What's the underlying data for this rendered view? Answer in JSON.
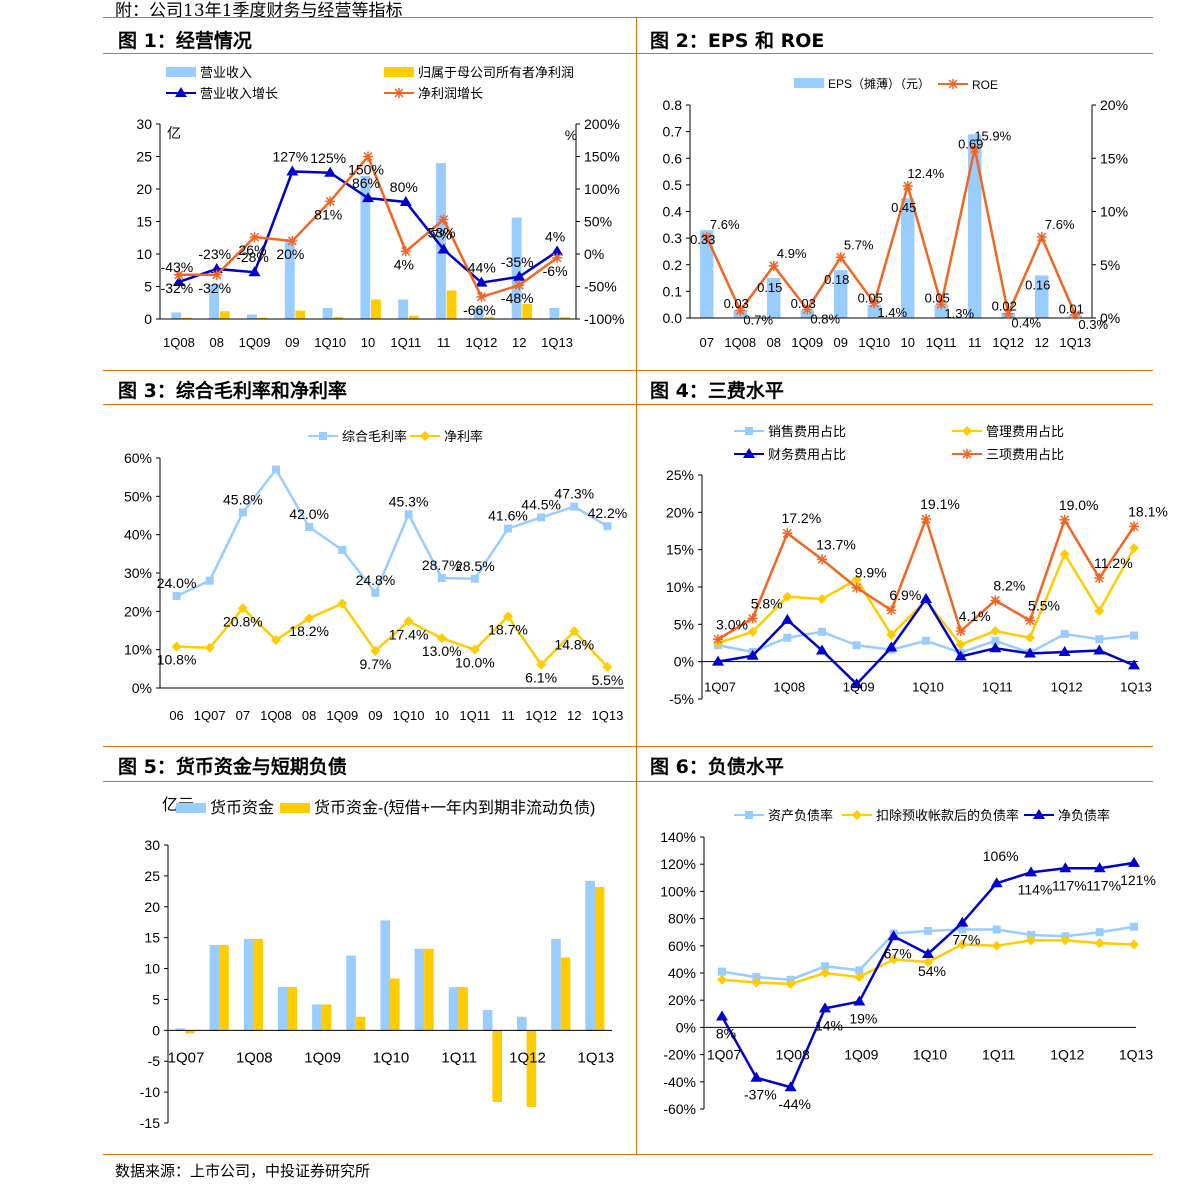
{
  "header": "附：公司13年1季度财务与经营等指标",
  "source": "数据来源：上市公司，中投证券研究所",
  "colors": {
    "orange": "#E36C0A",
    "lightblue": "#99CCFF",
    "yellow": "#FFCC00",
    "blue": "#0000CC",
    "orangeline": "#F26522",
    "gold": "#FFCC00"
  },
  "chart_data": [
    {
      "id": "fig1",
      "title": "图 1：经营情况",
      "type": "bar",
      "unit_left": "亿",
      "unit_right": "%",
      "categories": [
        "1Q08",
        "08",
        "1Q09",
        "09",
        "1Q10",
        "10",
        "1Q11",
        "11",
        "1Q12",
        "12",
        "1Q13"
      ],
      "ylim_left": [
        0,
        30
      ],
      "yticks_left": [
        "0",
        "5",
        "10",
        "15",
        "20",
        "25",
        "30"
      ],
      "ylim_right": [
        -100,
        200
      ],
      "yticks_right": [
        "-100%",
        "-50%",
        "0%",
        "50%",
        "100%",
        "150%",
        "200%"
      ],
      "series": [
        {
          "name": "营业收入",
          "kind": "bar",
          "axis": "left",
          "color": "#99CCFF",
          "values": [
            1.0,
            5.3,
            0.7,
            12.0,
            1.7,
            22.0,
            3.0,
            24.0,
            1.8,
            15.6,
            1.7
          ]
        },
        {
          "name": "归属于母公司所有者净利润",
          "kind": "bar",
          "axis": "left",
          "color": "#FFCC00",
          "values": [
            0.2,
            1.2,
            0.2,
            1.3,
            0.3,
            3.0,
            0.5,
            4.4,
            0.3,
            2.3,
            0.3
          ]
        },
        {
          "name": "营业收入增长",
          "kind": "line",
          "axis": "right",
          "color": "#0000CC",
          "marker": "triangle",
          "values": [
            -43,
            -23,
            -28,
            127,
            125,
            86,
            80,
            7,
            -44,
            -35,
            4
          ]
        },
        {
          "name": "净利润增长",
          "kind": "line",
          "axis": "right",
          "color": "#F26522",
          "marker": "star",
          "values": [
            -32,
            -32,
            26,
            20,
            81,
            150,
            4,
            53,
            -66,
            -48,
            -6
          ]
        }
      ],
      "labels": [
        {
          "cat": 0,
          "v": -43,
          "text": "-43%"
        },
        {
          "cat": 1,
          "v": -23,
          "text": "-23%"
        },
        {
          "cat": 2,
          "v": -28,
          "text": "-28%"
        },
        {
          "cat": 3,
          "v": 127,
          "text": "127%"
        },
        {
          "cat": 4,
          "v": 125,
          "text": "125%"
        },
        {
          "cat": 5,
          "v": 86,
          "text": "86%"
        },
        {
          "cat": 6,
          "v": 80,
          "text": "80%"
        },
        {
          "cat": 7,
          "v": 7,
          "text": "7%"
        },
        {
          "cat": 8,
          "v": -44,
          "text": "-44%"
        },
        {
          "cat": 9,
          "v": -35,
          "text": "-35%"
        },
        {
          "cat": 10,
          "v": 4,
          "text": "4%"
        },
        {
          "cat": 0,
          "v": -32,
          "text": "-32%"
        },
        {
          "cat": 1,
          "v": -32,
          "text": "-32%"
        },
        {
          "cat": 2,
          "v": 26,
          "text": "26%"
        },
        {
          "cat": 3,
          "v": 20,
          "text": "20%"
        },
        {
          "cat": 4,
          "v": 81,
          "text": "81%"
        },
        {
          "cat": 5,
          "v": 150,
          "text": "150%"
        },
        {
          "cat": 6,
          "v": 4,
          "text": "4%"
        },
        {
          "cat": 7,
          "v": 53,
          "text": "53%"
        },
        {
          "cat": 8,
          "v": -66,
          "text": "-66%"
        },
        {
          "cat": 9,
          "v": -48,
          "text": "-48%"
        },
        {
          "cat": 10,
          "v": -6,
          "text": "-6%"
        }
      ]
    },
    {
      "id": "fig2",
      "title": "图 2：EPS 和 ROE",
      "type": "bar",
      "categories": [
        "07",
        "1Q08",
        "08",
        "1Q09",
        "09",
        "1Q10",
        "10",
        "1Q11",
        "11",
        "1Q12",
        "12",
        "1Q13"
      ],
      "ylim_left": [
        0,
        0.8
      ],
      "yticks_left": [
        "0.0",
        "0.1",
        "0.2",
        "0.3",
        "0.4",
        "0.5",
        "0.6",
        "0.7",
        "0.8"
      ],
      "ylim_right": [
        0,
        20
      ],
      "yticks_right": [
        "0%",
        "5%",
        "10%",
        "15%",
        "20%"
      ],
      "series": [
        {
          "name": "EPS（摊薄）（元）",
          "kind": "bar",
          "axis": "left",
          "color": "#99CCFF",
          "values": [
            0.33,
            0.03,
            0.15,
            0.03,
            0.18,
            0.05,
            0.45,
            0.05,
            0.69,
            0.02,
            0.16,
            0.01
          ]
        },
        {
          "name": "ROE",
          "kind": "line",
          "axis": "right",
          "color": "#F26522",
          "marker": "star",
          "values": [
            7.6,
            0.7,
            4.9,
            0.8,
            5.7,
            1.4,
            12.4,
            1.3,
            15.9,
            0.4,
            7.6,
            0.3
          ]
        }
      ],
      "labels": [
        {
          "cat": 0,
          "text": "0.33"
        },
        {
          "cat": 1,
          "text": "0.03"
        },
        {
          "cat": 2,
          "text": "0.15"
        },
        {
          "cat": 3,
          "text": "0.03"
        },
        {
          "cat": 4,
          "text": "0.18"
        },
        {
          "cat": 5,
          "text": "0.05"
        },
        {
          "cat": 6,
          "text": "0.45"
        },
        {
          "cat": 7,
          "text": "0.05"
        },
        {
          "cat": 8,
          "text": "0.69"
        },
        {
          "cat": 9,
          "text": "0.02"
        },
        {
          "cat": 10,
          "text": "0.16"
        },
        {
          "cat": 11,
          "text": "0.01"
        },
        {
          "cat": 0,
          "text": "7.6%"
        },
        {
          "cat": 1,
          "text": "0.7%"
        },
        {
          "cat": 2,
          "text": "4.9%"
        },
        {
          "cat": 3,
          "text": "0.8%"
        },
        {
          "cat": 4,
          "text": "5.7%"
        },
        {
          "cat": 5,
          "text": "1.4%"
        },
        {
          "cat": 6,
          "text": "12.4%"
        },
        {
          "cat": 7,
          "text": "1.3%"
        },
        {
          "cat": 8,
          "text": "15.9%"
        },
        {
          "cat": 9,
          "text": "0.4%"
        },
        {
          "cat": 10,
          "text": "7.6%"
        },
        {
          "cat": 11,
          "text": "0.3%"
        }
      ]
    },
    {
      "id": "fig3",
      "title": "图 3：综合毛利率和净利率",
      "type": "line",
      "categories": [
        "06",
        "1Q07",
        "07",
        "1Q08",
        "08",
        "1Q09",
        "09",
        "1Q10",
        "10",
        "1Q11",
        "11",
        "1Q12",
        "12",
        "1Q13"
      ],
      "ylim": [
        0,
        60
      ],
      "yticks": [
        "0%",
        "10%",
        "20%",
        "30%",
        "40%",
        "50%",
        "60%"
      ],
      "series": [
        {
          "name": "综合毛利率",
          "color": "#99CCFF",
          "marker": "square",
          "values": [
            24.0,
            28.0,
            45.8,
            57.0,
            42.0,
            36.0,
            24.8,
            45.3,
            28.7,
            28.5,
            41.6,
            44.5,
            47.3,
            42.2
          ]
        },
        {
          "name": "净利率",
          "color": "#FFCC00",
          "marker": "diamond",
          "values": [
            10.8,
            10.5,
            20.8,
            12.5,
            18.2,
            22.0,
            9.7,
            17.4,
            13.0,
            10.0,
            18.7,
            6.1,
            14.8,
            5.5
          ]
        }
      ],
      "labels": [
        {
          "s": 0,
          "cat": 0,
          "text": "24.0%"
        },
        {
          "s": 0,
          "cat": 2,
          "text": "45.8%"
        },
        {
          "s": 0,
          "cat": 4,
          "text": "42.0%"
        },
        {
          "s": 0,
          "cat": 6,
          "text": "24.8%"
        },
        {
          "s": 0,
          "cat": 7,
          "text": "45.3%"
        },
        {
          "s": 0,
          "cat": 8,
          "text": "28.7%"
        },
        {
          "s": 0,
          "cat": 9,
          "text": "28.5%"
        },
        {
          "s": 0,
          "cat": 10,
          "text": "41.6%"
        },
        {
          "s": 0,
          "cat": 11,
          "text": "44.5%"
        },
        {
          "s": 0,
          "cat": 12,
          "text": "47.3%"
        },
        {
          "s": 0,
          "cat": 13,
          "text": "42.2%"
        },
        {
          "s": 1,
          "cat": 0,
          "text": "10.8%"
        },
        {
          "s": 1,
          "cat": 2,
          "text": "20.8%"
        },
        {
          "s": 1,
          "cat": 4,
          "text": "18.2%"
        },
        {
          "s": 1,
          "cat": 6,
          "text": "9.7%"
        },
        {
          "s": 1,
          "cat": 7,
          "text": "17.4%"
        },
        {
          "s": 1,
          "cat": 8,
          "text": "13.0%"
        },
        {
          "s": 1,
          "cat": 9,
          "text": "10.0%"
        },
        {
          "s": 1,
          "cat": 10,
          "text": "18.7%"
        },
        {
          "s": 1,
          "cat": 11,
          "text": "6.1%"
        },
        {
          "s": 1,
          "cat": 12,
          "text": "14.8%"
        },
        {
          "s": 1,
          "cat": 13,
          "text": "5.5%"
        }
      ]
    },
    {
      "id": "fig4",
      "title": "图 4：三费水平",
      "type": "line",
      "tick_labels": [
        "1Q07",
        "1Q08",
        "1Q09",
        "1Q10",
        "1Q11",
        "1Q12",
        "1Q13"
      ],
      "ylim": [
        -5,
        25
      ],
      "yticks": [
        "-5%",
        "0%",
        "5%",
        "10%",
        "15%",
        "20%",
        "25%"
      ],
      "series": [
        {
          "name": "销售费用占比",
          "color": "#99CCFF",
          "marker": "square",
          "values": [
            2.2,
            1.3,
            3.2,
            4.0,
            2.2,
            1.6,
            2.8,
            1.2,
            2.8,
            1.2,
            3.7,
            3.0,
            3.5
          ]
        },
        {
          "name": "管理费用占比",
          "color": "#FFCC00",
          "marker": "diamond",
          "values": [
            2.5,
            4.0,
            8.7,
            8.4,
            11.0,
            3.6,
            8.2,
            2.3,
            4.1,
            3.2,
            14.4,
            6.8,
            15.2
          ]
        },
        {
          "name": "财务费用占比",
          "color": "#0000CC",
          "marker": "triangle",
          "values": [
            0.0,
            0.8,
            5.6,
            1.5,
            -3.0,
            1.9,
            8.4,
            0.7,
            1.8,
            1.1,
            1.3,
            1.5,
            -0.5
          ]
        },
        {
          "name": "三项费用占比",
          "color": "#F26522",
          "marker": "star",
          "values": [
            3.0,
            5.8,
            17.2,
            13.7,
            9.9,
            6.9,
            19.1,
            4.1,
            8.2,
            5.5,
            19.0,
            11.2,
            18.1
          ]
        }
      ],
      "labels": [
        {
          "cat": 0,
          "v": 3.0,
          "text": "3.0%"
        },
        {
          "cat": 1,
          "v": 5.8,
          "text": "5.8%"
        },
        {
          "cat": 2,
          "v": 17.2,
          "text": "17.2%"
        },
        {
          "cat": 3,
          "v": 13.7,
          "text": "13.7%"
        },
        {
          "cat": 4,
          "v": 9.9,
          "text": "9.9%"
        },
        {
          "cat": 5,
          "v": 6.9,
          "text": "6.9%"
        },
        {
          "cat": 6,
          "v": 19.1,
          "text": "19.1%"
        },
        {
          "cat": 7,
          "v": 4.1,
          "text": "4.1%"
        },
        {
          "cat": 8,
          "v": 8.2,
          "text": "8.2%"
        },
        {
          "cat": 9,
          "v": 5.5,
          "text": "5.5%"
        },
        {
          "cat": 10,
          "v": 19.0,
          "text": "19.0%"
        },
        {
          "cat": 11,
          "v": 11.2,
          "text": "11.2%"
        },
        {
          "cat": 12,
          "v": 18.1,
          "text": "18.1%"
        }
      ]
    },
    {
      "id": "fig5",
      "title": "图 5：货币资金与短期负债",
      "type": "bar",
      "unit": "亿元",
      "tick_labels": [
        "1Q07",
        "1Q08",
        "1Q09",
        "1Q10",
        "1Q11",
        "1Q12",
        "1Q13"
      ],
      "ylim": [
        -15,
        30
      ],
      "yticks": [
        "-15",
        "-10",
        "-5",
        "0",
        "5",
        "10",
        "15",
        "20",
        "25",
        "30"
      ],
      "series": [
        {
          "name": "货币资金",
          "color": "#99CCFF",
          "values": [
            0.3,
            13.8,
            14.8,
            7.0,
            4.2,
            12.1,
            17.8,
            13.2,
            7.0,
            3.3,
            2.2,
            14.8,
            24.2
          ]
        },
        {
          "name": "货币资金-(短借+一年内到期非流动负债)",
          "color": "#FFCC00",
          "values": [
            -0.5,
            13.8,
            14.8,
            7.0,
            4.2,
            2.2,
            8.4,
            13.2,
            7.0,
            -11.6,
            -12.4,
            11.8,
            23.2
          ]
        }
      ]
    },
    {
      "id": "fig6",
      "title": "图 6：负债水平",
      "type": "line",
      "tick_labels": [
        "1Q07",
        "1Q08",
        "1Q09",
        "1Q10",
        "1Q11",
        "1Q12",
        "1Q13"
      ],
      "ylim": [
        -60,
        140
      ],
      "yticks": [
        "-60%",
        "-40%",
        "-20%",
        "0%",
        "20%",
        "40%",
        "60%",
        "80%",
        "100%",
        "120%",
        "140%"
      ],
      "series": [
        {
          "name": "资产负债率",
          "color": "#99CCFF",
          "marker": "square",
          "values": [
            41,
            37,
            35,
            45,
            42,
            69,
            71,
            72,
            72,
            68,
            67,
            70,
            74
          ]
        },
        {
          "name": "扣除预收帐款后的负债率",
          "color": "#FFCC00",
          "marker": "diamond",
          "values": [
            35,
            33,
            32,
            40,
            37,
            50,
            48,
            61,
            60,
            64,
            64,
            62,
            61
          ]
        },
        {
          "name": "净负债率",
          "color": "#0000CC",
          "marker": "triangle",
          "values": [
            8,
            -37,
            -44,
            14,
            19,
            67,
            54,
            77,
            106,
            114,
            117,
            117,
            121
          ]
        }
      ],
      "labels": [
        {
          "cat": 0,
          "v": 8,
          "text": "8%"
        },
        {
          "cat": 1,
          "v": -37,
          "text": "-37%"
        },
        {
          "cat": 2,
          "v": -44,
          "text": "-44%"
        },
        {
          "cat": 3,
          "v": 14,
          "text": "14%"
        },
        {
          "cat": 4,
          "v": 19,
          "text": "19%"
        },
        {
          "cat": 5,
          "v": 67,
          "text": "67%"
        },
        {
          "cat": 6,
          "v": 54,
          "text": "54%"
        },
        {
          "cat": 7,
          "v": 77,
          "text": "77%"
        },
        {
          "cat": 8,
          "v": 106,
          "text": "106%"
        },
        {
          "cat": 9,
          "v": 114,
          "text": "114%"
        },
        {
          "cat": 10,
          "v": 117,
          "text": "117%"
        },
        {
          "cat": 11,
          "v": 117,
          "text": "117%"
        },
        {
          "cat": 12,
          "v": 121,
          "text": "121%"
        }
      ]
    }
  ]
}
